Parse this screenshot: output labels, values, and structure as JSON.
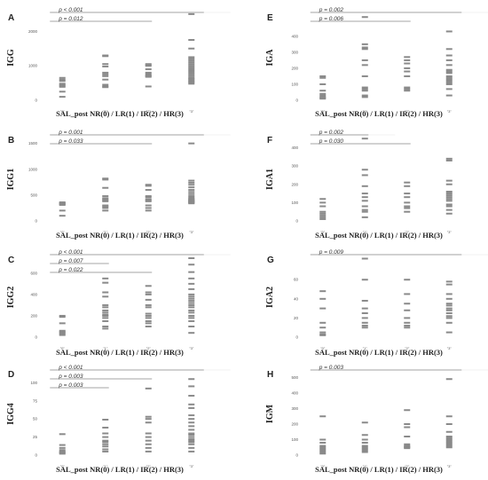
{
  "chart_data": [
    {
      "type": "scatter",
      "panel": "A",
      "ylabel": "IGG",
      "xlabel": "SAL_post NR(0) / LR(1) / IR(2) / HR(3)",
      "categories": [
        "\"0\"",
        "\"1\"",
        "\"2\"",
        "\"3\""
      ],
      "yticks": [
        0,
        1000,
        2000
      ],
      "ylim": [
        0,
        2600
      ],
      "series": [
        {
          "values": [
            650,
            600,
            560,
            480,
            450,
            420,
            390,
            250,
            100
          ]
        },
        {
          "values": [
            1300,
            1280,
            1050,
            980,
            800,
            750,
            700,
            600,
            450,
            400,
            380
          ]
        },
        {
          "values": [
            1050,
            1020,
            1000,
            900,
            800,
            760,
            720,
            700,
            680,
            400
          ]
        },
        {
          "values": [
            2500,
            1750,
            1500,
            1250,
            1200,
            1150,
            1100,
            1050,
            1000,
            950,
            900,
            850,
            800,
            750,
            700,
            650,
            620,
            580,
            550,
            520,
            480
          ]
        }
      ],
      "pvalues": [
        {
          "label": "p < 0.001",
          "from": 0,
          "to": 3
        },
        {
          "label": "p = 0.012",
          "from": 0,
          "to": 2
        }
      ]
    },
    {
      "type": "scatter",
      "panel": "B",
      "ylabel": "IGG1",
      "xlabel": "SAL_post NR(0) / LR(1) / IR(2) / HR(3)",
      "categories": [
        "\"0\"",
        "\"1\"",
        "\"2\"",
        "\"3\""
      ],
      "yticks": [
        0,
        500,
        1000,
        1500
      ],
      "ylim": [
        0,
        1700
      ],
      "series": [
        {
          "values": [
            360,
            350,
            340,
            330,
            320,
            310,
            200,
            100
          ]
        },
        {
          "values": [
            820,
            800,
            640,
            480,
            440,
            420,
            400,
            380,
            300,
            280,
            250,
            200
          ]
        },
        {
          "values": [
            700,
            680,
            600,
            480,
            460,
            420,
            400,
            380,
            300,
            250,
            200
          ]
        },
        {
          "values": [
            1500,
            780,
            740,
            700,
            650,
            600,
            560,
            520,
            480,
            450,
            430,
            410,
            400,
            390,
            380,
            370,
            360,
            350,
            340
          ]
        }
      ],
      "pvalues": [
        {
          "label": "p = 0.001",
          "from": 0,
          "to": 3
        },
        {
          "label": "p = 0.033",
          "from": 0,
          "to": 2
        }
      ]
    },
    {
      "type": "scatter",
      "panel": "C",
      "ylabel": "IGG2",
      "xlabel": "SAL_post NR(0) / LR(1) / IR(2) / HR(3)",
      "categories": [
        "\"0\"",
        "\"1\"",
        "\"2\"",
        "\"3\""
      ],
      "yticks": [
        0,
        200,
        400,
        600
      ],
      "ylim": [
        0,
        790
      ],
      "series": [
        {
          "values": [
            200,
            190,
            130,
            60,
            50,
            40,
            30,
            20
          ]
        },
        {
          "values": [
            550,
            510,
            420,
            380,
            300,
            280,
            250,
            230,
            210,
            200,
            180,
            150,
            100,
            80
          ]
        },
        {
          "values": [
            480,
            420,
            400,
            350,
            300,
            280,
            220,
            200,
            180,
            150,
            130,
            100
          ]
        },
        {
          "values": [
            740,
            680,
            610,
            550,
            500,
            450,
            400,
            380,
            360,
            340,
            320,
            300,
            280,
            250,
            230,
            200,
            180,
            150,
            100,
            40
          ]
        }
      ],
      "pvalues": [
        {
          "label": "p < 0.001",
          "from": 0,
          "to": 3
        },
        {
          "label": "p = 0.007",
          "from": 0,
          "to": 1
        },
        {
          "label": "p = 0.022",
          "from": 0,
          "to": 2
        }
      ]
    },
    {
      "type": "scatter",
      "panel": "D",
      "ylabel": "IGG4",
      "xlabel": "SAL_post NR(0) / LR(1) / IR(2) / HR(3)",
      "categories": [
        "\"0\"",
        "\"1\"",
        "\"2\"",
        "\"3\""
      ],
      "yticks": [
        0,
        25,
        50,
        75,
        100
      ],
      "ylim": [
        0,
        120
      ],
      "series": [
        {
          "values": [
            29,
            14,
            10,
            7,
            5,
            4,
            3,
            2
          ]
        },
        {
          "values": [
            49,
            38,
            30,
            25,
            20,
            18,
            15,
            12,
            8,
            5
          ]
        },
        {
          "values": [
            92,
            53,
            50,
            45,
            30,
            25,
            20,
            15,
            10,
            5
          ]
        },
        {
          "values": [
            105,
            95,
            82,
            70,
            65,
            55,
            50,
            45,
            40,
            35,
            30,
            28,
            25,
            22,
            20,
            18,
            15,
            10,
            5
          ]
        }
      ],
      "pvalues": [
        {
          "label": "p < 0.001",
          "from": 0,
          "to": 3
        },
        {
          "label": "p = 0.003",
          "from": 0,
          "to": 2
        },
        {
          "label": "p = 0.003",
          "from": 0,
          "to": 1
        }
      ]
    },
    {
      "type": "scatter",
      "panel": "E",
      "ylabel": "IGA",
      "xlabel": "SAL_post NR(0) / LR(1) / IR(2) / HR(3)",
      "categories": [
        "\"0\"",
        "\"1\"",
        "\"2\"",
        "\"3\""
      ],
      "yticks": [
        0,
        100,
        200,
        300,
        400
      ],
      "ylim": [
        0,
        560
      ],
      "series": [
        {
          "values": [
            150,
            140,
            100,
            60,
            40,
            30,
            20,
            15,
            10
          ]
        },
        {
          "values": [
            520,
            350,
            330,
            320,
            250,
            220,
            150,
            80,
            70,
            60,
            30,
            20
          ]
        },
        {
          "values": [
            270,
            250,
            230,
            200,
            180,
            150,
            80,
            70,
            60
          ]
        },
        {
          "values": [
            430,
            320,
            280,
            250,
            220,
            190,
            180,
            170,
            150,
            140,
            130,
            120,
            110,
            100,
            70,
            30
          ]
        }
      ],
      "pvalues": [
        {
          "label": "p = 0.002",
          "from": 0,
          "to": 3
        },
        {
          "label": "p = 0.006",
          "from": 0,
          "to": 2
        }
      ]
    },
    {
      "type": "scatter",
      "panel": "F",
      "ylabel": "IGA1",
      "xlabel": "SAL_post NR(0) / LR(1) / IR(2) / HR(3)",
      "categories": [
        "\"0\"",
        "\"1\"",
        "\"2\"",
        "\"3\""
      ],
      "yticks": [
        0,
        100,
        200,
        300,
        400
      ],
      "ylim": [
        0,
        480
      ],
      "series": [
        {
          "values": [
            120,
            100,
            80,
            50,
            40,
            30,
            20,
            10
          ]
        },
        {
          "values": [
            450,
            280,
            250,
            190,
            150,
            130,
            110,
            80,
            60,
            50,
            20
          ]
        },
        {
          "values": [
            210,
            190,
            150,
            130,
            100,
            80,
            70,
            50
          ]
        },
        {
          "values": [
            340,
            330,
            220,
            200,
            160,
            150,
            140,
            130,
            120,
            110,
            90,
            80,
            60,
            40
          ]
        }
      ],
      "pvalues": [
        {
          "label": "p = 0.002",
          "from": 0,
          "to": 1
        },
        {
          "label": "p = 0.030",
          "from": 0,
          "to": 2
        }
      ]
    },
    {
      "type": "scatter",
      "panel": "G",
      "ylabel": "IGA2",
      "xlabel": "SAL_post NR(0) / LR(1) / IR(2) / HR(3)",
      "categories": [
        "\"0\"",
        "\"1\"",
        "\"2\"",
        "\"3\""
      ],
      "yticks": [
        0,
        20,
        40,
        60
      ],
      "ylim": [
        0,
        88
      ],
      "series": [
        {
          "values": [
            48,
            40,
            30,
            15,
            10,
            5,
            3,
            2
          ]
        },
        {
          "values": [
            82,
            60,
            38,
            30,
            25,
            20,
            15,
            12,
            10
          ]
        },
        {
          "values": [
            60,
            45,
            35,
            28,
            20,
            15,
            12,
            10
          ]
        },
        {
          "values": [
            58,
            55,
            45,
            40,
            35,
            33,
            30,
            28,
            25,
            22,
            20,
            15,
            5
          ]
        }
      ],
      "pvalues": [
        {
          "label": "p = 0.009",
          "from": 0,
          "to": 3
        }
      ]
    },
    {
      "type": "scatter",
      "panel": "H",
      "ylabel": "IGM",
      "xlabel": "SAL_post NR(0) / LR(1) / IR(2) / HR(3)",
      "categories": [
        "\"0\"",
        "\"1\"",
        "\"2\"",
        "\"3\""
      ],
      "yticks": [
        0,
        100,
        200,
        300,
        400,
        500
      ],
      "ylim": [
        0,
        560
      ],
      "series": [
        {
          "values": [
            250,
            100,
            80,
            60,
            50,
            40,
            30,
            20,
            10
          ]
        },
        {
          "values": [
            210,
            130,
            100,
            80,
            60,
            50,
            40,
            30,
            20
          ]
        },
        {
          "values": [
            290,
            200,
            180,
            120,
            70,
            60,
            55,
            50,
            45
          ]
        },
        {
          "values": [
            490,
            250,
            200,
            150,
            120,
            110,
            100,
            90,
            80,
            70,
            60,
            50
          ]
        }
      ],
      "pvalues": [
        {
          "label": "p = 0.003",
          "from": 0,
          "to": 3
        }
      ]
    }
  ]
}
